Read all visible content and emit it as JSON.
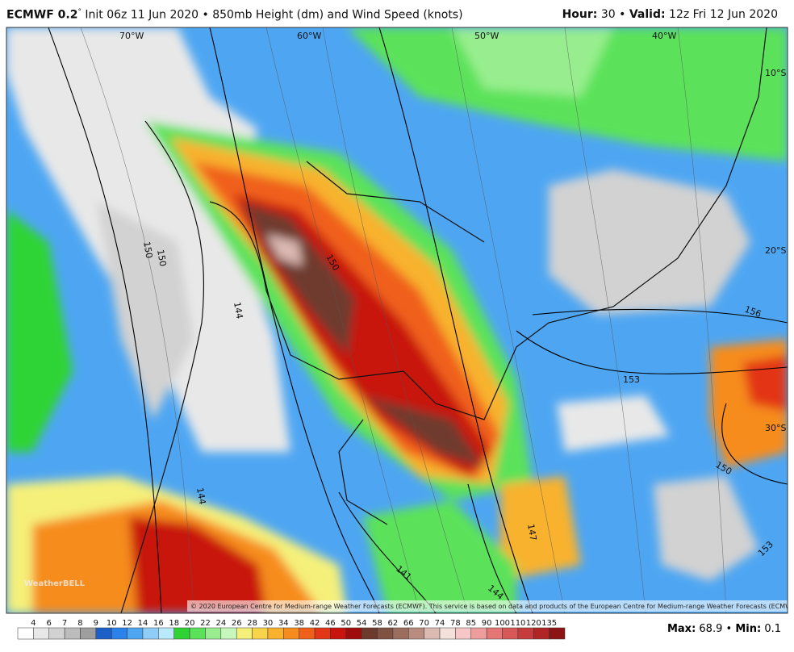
{
  "header": {
    "model": "ECMWF 0.2",
    "degree": "°",
    "description": "Init 06z 11 Jun 2020 • 850mb Height (dm) and Wind Speed (knots)",
    "hour_label": "Hour:",
    "hour": "30",
    "separator": "•",
    "valid_label": "Valid:",
    "valid": "12z Fri 12 Jun 2020"
  },
  "map": {
    "longitudes": [
      "70°W",
      "60°W",
      "50°W",
      "40°W"
    ],
    "latitudes": [
      "10°S",
      "20°S",
      "30°S"
    ],
    "contour_labels": [
      "150",
      "150",
      "150",
      "144",
      "156",
      "153",
      "150",
      "147",
      "144",
      "144",
      "141",
      "153"
    ],
    "copyright": "© 2020 European Centre for Medium-range Weather Forecasts (ECMWF). This service is based on data and products of the European Centre for Medium-range Weather Forecasts (ECMWF).",
    "logo": "WeatherBELL"
  },
  "colorbar": {
    "ticks": [
      "4",
      "6",
      "7",
      "8",
      "9",
      "10",
      "12",
      "14",
      "16",
      "18",
      "20",
      "22",
      "24",
      "26",
      "28",
      "30",
      "34",
      "38",
      "42",
      "46",
      "50",
      "54",
      "58",
      "62",
      "66",
      "70",
      "74",
      "78",
      "85",
      "90",
      "100",
      "110",
      "120",
      "135"
    ],
    "colors": [
      "#ffffff",
      "#e8e8e8",
      "#d2d2d2",
      "#bcbcbc",
      "#9e9e9e",
      "#1c5fc8",
      "#2a82ea",
      "#4ea6f2",
      "#8fcdf8",
      "#b8eafb",
      "#2fd434",
      "#5be25a",
      "#98ee8e",
      "#c8f7bd",
      "#f5f07a",
      "#f9d44a",
      "#f8b22e",
      "#f68c1e",
      "#f0601a",
      "#e33617",
      "#c8140f",
      "#a00c0c",
      "#6e3a2e",
      "#7f5244",
      "#9a6d5e",
      "#b98c80",
      "#dbbab2",
      "#f4e1dc",
      "#f7c6c6",
      "#ee9c9c",
      "#e47676",
      "#d85858",
      "#c63c3c",
      "#b02626",
      "#8c1414"
    ]
  },
  "footer": {
    "max_label": "Max:",
    "max": "68.9",
    "separator": "•",
    "min_label": "Min:",
    "min": "0.1"
  }
}
